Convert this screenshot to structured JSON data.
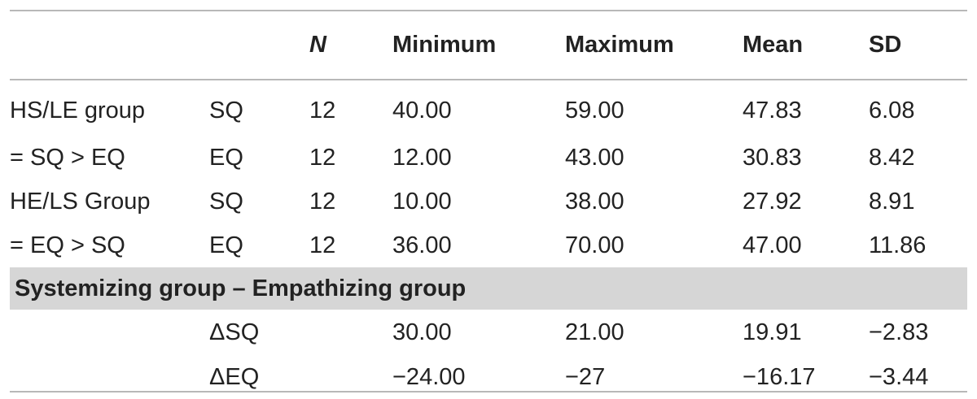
{
  "table": {
    "headers": {
      "label": "",
      "var": "",
      "n": "N",
      "minimum": "Minimum",
      "maximum": "Maximum",
      "mean": "Mean",
      "sd": "SD"
    },
    "rows": [
      {
        "label": "HS/LE group",
        "var": "SQ",
        "n": "12",
        "min": "40.00",
        "max": "59.00",
        "mean": "47.83",
        "sd": "6.08"
      },
      {
        "label": "= SQ > EQ",
        "var": "EQ",
        "n": "12",
        "min": "12.00",
        "max": "43.00",
        "mean": "30.83",
        "sd": "8.42"
      },
      {
        "label": "HE/LS Group",
        "var": "SQ",
        "n": "12",
        "min": "10.00",
        "max": "38.00",
        "mean": "27.92",
        "sd": "8.91"
      },
      {
        "label": "= EQ > SQ",
        "var": "EQ",
        "n": "12",
        "min": "36.00",
        "max": "70.00",
        "mean": "47.00",
        "sd": "11.86"
      }
    ],
    "section_title": "Systemizing group – Empathizing group",
    "delta_rows": [
      {
        "var": "ΔSQ",
        "min": "30.00",
        "max": "21.00",
        "mean": "19.91",
        "sd": "−2.83"
      },
      {
        "var": "ΔEQ",
        "min": "−24.00",
        "max": "−27",
        "mean": "−16.17",
        "sd": "−3.44"
      }
    ]
  },
  "colors": {
    "rule": "#b8b8b8",
    "section_band": "#d6d6d6",
    "text": "#222222"
  }
}
